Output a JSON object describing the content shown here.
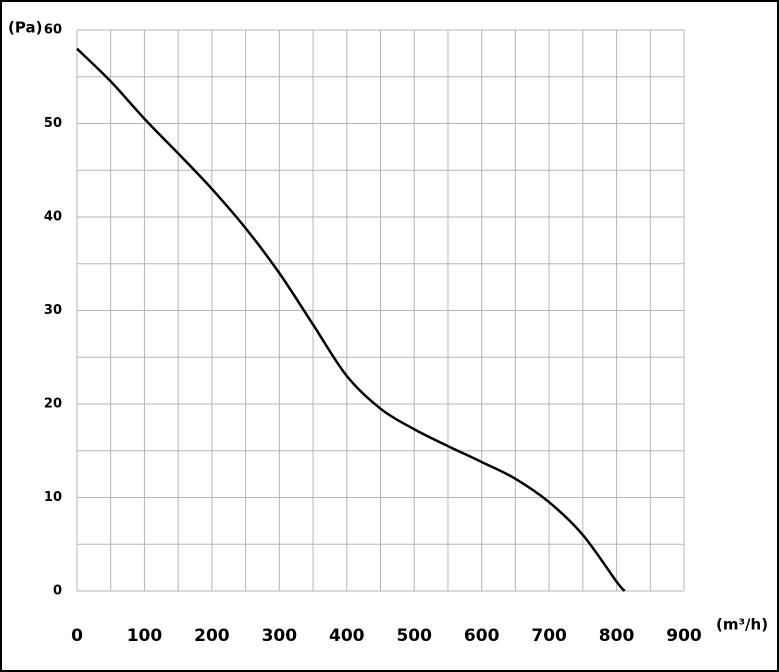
{
  "chart_data": {
    "type": "line",
    "y_label": "(Pa)",
    "x_label": "(m³/h)",
    "x": [
      0,
      50,
      100,
      150,
      200,
      250,
      300,
      350,
      400,
      450,
      500,
      550,
      600,
      650,
      700,
      750,
      800,
      812
    ],
    "series": [
      {
        "color": "#000000",
        "values": [
          58,
          54.5,
          50.5,
          46.8,
          43,
          38.8,
          34,
          28.5,
          23,
          19.5,
          17.3,
          15.5,
          13.8,
          12,
          9.5,
          6,
          1,
          0
        ]
      }
    ],
    "xlim": [
      0,
      900
    ],
    "xticks": [
      0,
      100,
      200,
      300,
      400,
      500,
      600,
      700,
      800,
      900
    ],
    "ylim": [
      0,
      60
    ],
    "yticks": [
      0,
      10,
      20,
      30,
      40,
      50,
      60
    ],
    "grid": true,
    "minor_grid": true
  }
}
